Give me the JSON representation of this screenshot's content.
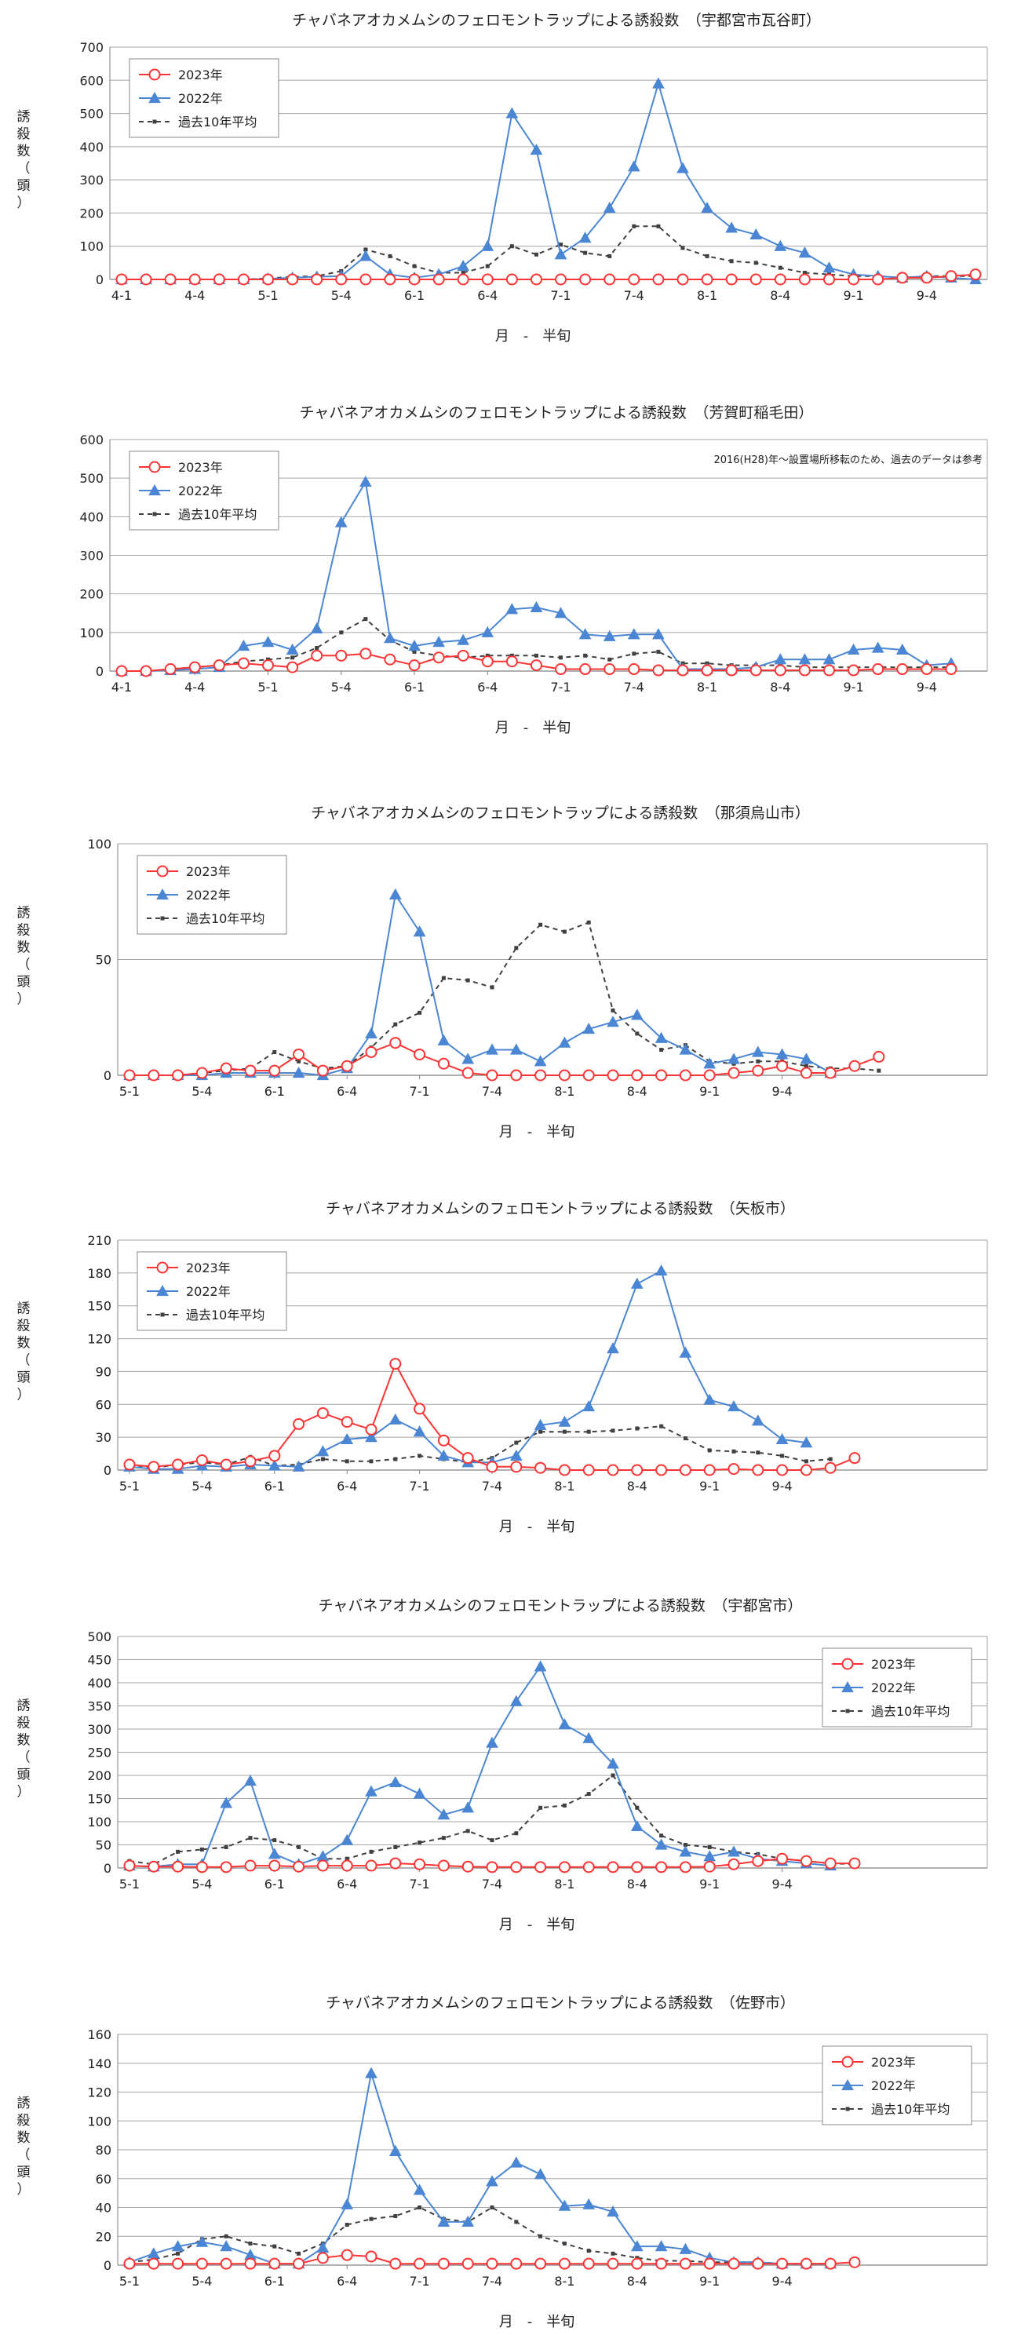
{
  "legend_labels": [
    "2023年",
    "2022年",
    "過去10年平均"
  ],
  "colors": {
    "y2023": "#FF3333",
    "y2022": "#4A86D4",
    "avg": "#404040",
    "grid": "#A6A6A6",
    "axis": "#808080"
  },
  "chart_data": [
    {
      "type": "line",
      "title": "チャバネアオカメムシのフェロモントラップによる誘殺数　（宇都宮市瓦谷町）",
      "ylabel": "誘殺数（頭）",
      "xlabel": "月　-　半旬",
      "ylim": [
        0,
        700
      ],
      "yticks": [
        0,
        100,
        200,
        300,
        400,
        500,
        600,
        700
      ],
      "x_tick_labels": [
        "4-1",
        "4-4",
        "5-1",
        "5-4",
        "6-1",
        "6-4",
        "7-1",
        "7-4",
        "8-1",
        "8-4",
        "9-1",
        "9-4"
      ],
      "note": "",
      "legend_position": "top-left",
      "grid": true,
      "series": [
        {
          "name": "2023年",
          "values": [
            0,
            0,
            0,
            0,
            0,
            0,
            0,
            0,
            0,
            0,
            0,
            0,
            0,
            0,
            0,
            0,
            0,
            0,
            0,
            0,
            0,
            0,
            0,
            0,
            0,
            0,
            0,
            0,
            0,
            0,
            0,
            0,
            5,
            5,
            10,
            15
          ]
        },
        {
          "name": "2022年",
          "values": [
            0,
            0,
            0,
            0,
            0,
            0,
            2,
            5,
            8,
            10,
            70,
            15,
            5,
            15,
            40,
            100,
            500,
            390,
            75,
            125,
            215,
            340,
            590,
            335,
            215,
            155,
            135,
            100,
            80,
            35,
            15,
            10,
            5,
            10,
            5,
            0
          ]
        },
        {
          "name": "過去10年平均",
          "values": [
            0,
            0,
            0,
            0,
            0,
            0,
            3,
            8,
            10,
            25,
            90,
            70,
            40,
            20,
            20,
            40,
            100,
            75,
            105,
            80,
            70,
            160,
            160,
            95,
            70,
            55,
            50,
            35,
            20,
            15,
            10,
            10,
            5,
            10,
            10,
            10
          ]
        }
      ]
    },
    {
      "type": "line",
      "title": "チャバネアオカメムシのフェロモントラップによる誘殺数　（芳賀町稲毛田）",
      "ylabel": "",
      "xlabel": "月　-　半旬",
      "ylim": [
        0,
        600
      ],
      "yticks": [
        0,
        100,
        200,
        300,
        400,
        500,
        600
      ],
      "x_tick_labels": [
        "4-1",
        "4-4",
        "5-1",
        "5-4",
        "6-1",
        "6-4",
        "7-1",
        "7-4",
        "8-1",
        "8-4",
        "9-1",
        "9-4"
      ],
      "note": "2016(H28)年～設置場所移転のため、過去のデータは参考",
      "legend_position": "top-left",
      "grid": true,
      "series": [
        {
          "name": "2023年",
          "values": [
            0,
            0,
            5,
            10,
            15,
            20,
            15,
            10,
            40,
            40,
            45,
            30,
            15,
            35,
            40,
            25,
            25,
            15,
            5,
            5,
            5,
            5,
            2,
            2,
            2,
            2,
            2,
            2,
            2,
            2,
            2,
            5,
            5,
            5,
            5
          ]
        },
        {
          "name": "2022年",
          "values": [
            0,
            0,
            2,
            5,
            10,
            65,
            75,
            55,
            110,
            385,
            490,
            85,
            65,
            75,
            80,
            100,
            160,
            165,
            150,
            95,
            90,
            95,
            95,
            5,
            5,
            5,
            10,
            30,
            30,
            30,
            55,
            60,
            55,
            15,
            20
          ]
        },
        {
          "name": "過去10年平均",
          "values": [
            0,
            0,
            5,
            10,
            15,
            25,
            30,
            35,
            60,
            100,
            135,
            80,
            50,
            40,
            35,
            40,
            40,
            40,
            35,
            40,
            30,
            45,
            50,
            20,
            20,
            15,
            15,
            15,
            10,
            10,
            10,
            10,
            10,
            10,
            10
          ]
        }
      ]
    },
    {
      "type": "line",
      "title": "チャバネアオカメムシのフェロモントラップによる誘殺数　（那須烏山市）",
      "ylabel": "誘殺数（頭）",
      "xlabel": "月　-　半旬",
      "ylim": [
        0,
        100
      ],
      "yticks": [
        0,
        50,
        100
      ],
      "x_tick_labels": [
        "5-1",
        "5-4",
        "6-1",
        "6-4",
        "7-1",
        "7-4",
        "8-1",
        "8-4",
        "9-1",
        "9-4"
      ],
      "note": "",
      "legend_position": "top-left",
      "grid": true,
      "series": [
        {
          "name": "2023年",
          "values": [
            0,
            0,
            0,
            1,
            3,
            2,
            2,
            9,
            2,
            4,
            10,
            14,
            9,
            5,
            1,
            0,
            0,
            0,
            0,
            0,
            0,
            0,
            0,
            0,
            0,
            1,
            2,
            4,
            1,
            1,
            4,
            8
          ]
        },
        {
          "name": "2022年",
          "values": [
            0,
            0,
            0,
            0,
            1,
            1,
            1,
            1,
            0,
            3,
            18,
            78,
            62,
            15,
            7,
            11,
            11,
            6,
            14,
            20,
            23,
            26,
            16,
            11,
            5,
            7,
            10,
            9,
            7,
            1
          ]
        },
        {
          "name": "過去10年平均",
          "values": [
            0,
            0,
            0,
            1,
            2,
            3,
            10,
            6,
            3,
            4,
            12,
            22,
            27,
            42,
            41,
            38,
            55,
            65,
            62,
            66,
            28,
            18,
            11,
            13,
            6,
            5,
            6,
            6,
            4,
            3,
            3,
            2
          ]
        }
      ]
    },
    {
      "type": "line",
      "title": "チャバネアオカメムシのフェロモントラップによる誘殺数　（矢板市）",
      "ylabel": "誘殺数（頭）",
      "xlabel": "月　-　半旬",
      "ylim": [
        0,
        210
      ],
      "yticks": [
        0,
        30,
        60,
        90,
        120,
        150,
        180,
        210
      ],
      "x_tick_labels": [
        "5-1",
        "5-4",
        "6-1",
        "6-4",
        "7-1",
        "7-4",
        "8-1",
        "8-4",
        "9-1",
        "9-4"
      ],
      "note": "",
      "legend_position": "top-left",
      "grid": true,
      "series": [
        {
          "name": "2023年",
          "values": [
            5,
            3,
            5,
            9,
            5,
            8,
            13,
            42,
            52,
            44,
            37,
            97,
            56,
            27,
            11,
            3,
            3,
            2,
            0,
            0,
            0,
            0,
            0,
            0,
            0,
            1,
            0,
            0,
            0,
            2,
            11
          ]
        },
        {
          "name": "2022年",
          "values": [
            3,
            1,
            1,
            4,
            3,
            5,
            4,
            3,
            17,
            28,
            30,
            46,
            35,
            13,
            7,
            7,
            13,
            41,
            44,
            58,
            111,
            170,
            182,
            107,
            64,
            58,
            45,
            28,
            25
          ]
        },
        {
          "name": "過去10年平均",
          "values": [
            5,
            2,
            5,
            7,
            5,
            12,
            4,
            5,
            10,
            8,
            8,
            10,
            13,
            10,
            7,
            11,
            25,
            35,
            35,
            35,
            36,
            38,
            40,
            29,
            18,
            17,
            16,
            13,
            8,
            10
          ]
        }
      ]
    },
    {
      "type": "line",
      "title": "チャバネアオカメムシのフェロモントラップによる誘殺数　（宇都宮市）",
      "ylabel": "誘殺数（頭）",
      "xlabel": "月　-　半旬",
      "ylim": [
        0,
        500
      ],
      "yticks": [
        0,
        50,
        100,
        150,
        200,
        250,
        300,
        350,
        400,
        450,
        500
      ],
      "x_tick_labels": [
        "5-1",
        "5-4",
        "6-1",
        "6-4",
        "7-1",
        "7-4",
        "8-1",
        "8-4",
        "9-1",
        "9-4"
      ],
      "note": "",
      "legend_position": "top-right",
      "grid": true,
      "series": [
        {
          "name": "2023年",
          "values": [
            5,
            3,
            3,
            2,
            2,
            5,
            5,
            3,
            5,
            5,
            5,
            10,
            8,
            5,
            3,
            2,
            2,
            2,
            2,
            2,
            2,
            2,
            2,
            2,
            3,
            8,
            15,
            20,
            15,
            10,
            10
          ]
        },
        {
          "name": "2022年",
          "values": [
            5,
            3,
            8,
            8,
            140,
            188,
            30,
            8,
            25,
            60,
            165,
            185,
            160,
            115,
            130,
            270,
            360,
            435,
            310,
            280,
            225,
            90,
            50,
            35,
            25,
            35,
            20,
            15,
            10,
            5
          ]
        },
        {
          "name": "過去10年平均",
          "values": [
            15,
            8,
            35,
            40,
            45,
            65,
            60,
            45,
            20,
            20,
            35,
            45,
            55,
            65,
            80,
            60,
            75,
            130,
            135,
            160,
            200,
            130,
            70,
            50,
            45,
            35,
            30,
            20,
            15,
            10,
            8
          ]
        }
      ]
    },
    {
      "type": "line",
      "title": "チャバネアオカメムシのフェロモントラップによる誘殺数　（佐野市）",
      "ylabel": "誘殺数（頭）",
      "xlabel": "月　-　半旬",
      "ylim": [
        0,
        160
      ],
      "yticks": [
        0,
        20,
        40,
        60,
        80,
        100,
        120,
        140,
        160
      ],
      "x_tick_labels": [
        "5-1",
        "5-4",
        "6-1",
        "6-4",
        "7-1",
        "7-4",
        "8-1",
        "8-4",
        "9-1",
        "9-4"
      ],
      "note": "",
      "legend_position": "top-right",
      "grid": true,
      "series": [
        {
          "name": "2023年",
          "values": [
            1,
            1,
            1,
            1,
            1,
            1,
            1,
            1,
            5,
            7,
            6,
            1,
            1,
            1,
            1,
            1,
            1,
            1,
            1,
            1,
            1,
            1,
            1,
            1,
            1,
            1,
            1,
            1,
            1,
            1,
            2
          ]
        },
        {
          "name": "2022年",
          "values": [
            2,
            8,
            13,
            16,
            13,
            7,
            1,
            1,
            12,
            42,
            133,
            79,
            52,
            30,
            30,
            58,
            71,
            63,
            41,
            42,
            37,
            13,
            13,
            11,
            5,
            2,
            2,
            1,
            1,
            1
          ]
        },
        {
          "name": "過去10年平均",
          "values": [
            2,
            4,
            8,
            18,
            20,
            15,
            13,
            8,
            15,
            28,
            32,
            34,
            40,
            32,
            30,
            40,
            30,
            20,
            15,
            10,
            8,
            5,
            3,
            3,
            2,
            2,
            2,
            1,
            1,
            1
          ]
        }
      ]
    }
  ]
}
